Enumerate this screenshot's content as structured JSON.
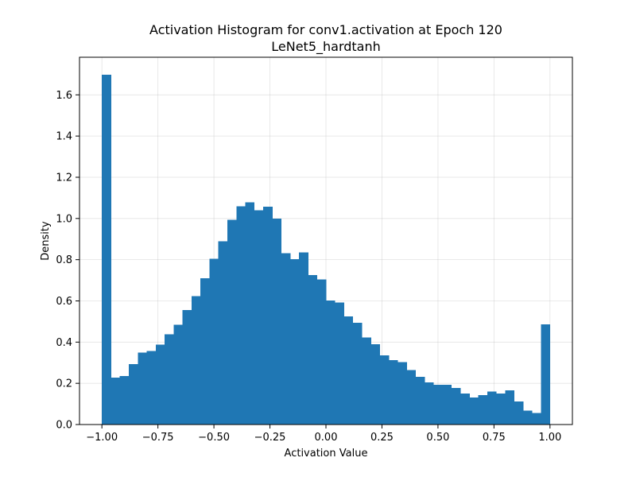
{
  "chart_data": {
    "type": "bar",
    "title": "Activation Histogram for conv1.activation at Epoch 120",
    "subtitle": "LeNet5_hardtanh",
    "xlabel": "Activation Value",
    "ylabel": "Density",
    "xlim": [
      -1.1,
      1.1
    ],
    "ylim": [
      0,
      1.7825
    ],
    "grid": true,
    "x_ticks": [
      -1.0,
      -0.75,
      -0.5,
      -0.25,
      0.0,
      0.25,
      0.5,
      0.75,
      1.0
    ],
    "x_tick_labels": [
      "−1.00",
      "−0.75",
      "−0.50",
      "−0.25",
      "0.00",
      "0.25",
      "0.50",
      "0.75",
      "1.00"
    ],
    "y_ticks": [
      0.0,
      0.2,
      0.4,
      0.6,
      0.8,
      1.0,
      1.2,
      1.4,
      1.6
    ],
    "y_tick_labels": [
      "0.0",
      "0.2",
      "0.4",
      "0.6",
      "0.8",
      "1.0",
      "1.2",
      "1.4",
      "1.6"
    ],
    "bin_start": -1.0,
    "bin_width": 0.04,
    "bar_color": "#1f77b4",
    "values": [
      1.697,
      0.227,
      0.236,
      0.293,
      0.35,
      0.356,
      0.388,
      0.438,
      0.485,
      0.556,
      0.624,
      0.71,
      0.805,
      0.89,
      0.993,
      1.06,
      1.078,
      1.04,
      1.058,
      1.0,
      0.832,
      0.802,
      0.836,
      0.726,
      0.704,
      0.601,
      0.592,
      0.525,
      0.494,
      0.422,
      0.389,
      0.336,
      0.312,
      0.302,
      0.264,
      0.231,
      0.204,
      0.193,
      0.193,
      0.177,
      0.15,
      0.131,
      0.142,
      0.16,
      0.151,
      0.165,
      0.112,
      0.067,
      0.056,
      0.486
    ]
  }
}
